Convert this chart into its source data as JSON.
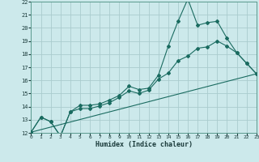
{
  "xlabel": "Humidex (Indice chaleur)",
  "bg_color": "#cce9eb",
  "grid_color": "#aaccce",
  "line_color": "#1a6b60",
  "xlim": [
    0,
    23
  ],
  "ylim": [
    12,
    22
  ],
  "xticks": [
    0,
    1,
    2,
    3,
    4,
    5,
    6,
    7,
    8,
    9,
    10,
    11,
    12,
    13,
    14,
    15,
    16,
    17,
    18,
    19,
    20,
    21,
    22,
    23
  ],
  "yticks": [
    12,
    13,
    14,
    15,
    16,
    17,
    18,
    19,
    20,
    21,
    22
  ],
  "line1_x": [
    0,
    1,
    2,
    3,
    4,
    5,
    6,
    7,
    8,
    9,
    10,
    11,
    12,
    13,
    14,
    15,
    16,
    17,
    18,
    19,
    20,
    21,
    22,
    23
  ],
  "line1_y": [
    12.05,
    13.2,
    12.85,
    11.75,
    13.6,
    14.1,
    14.1,
    14.2,
    14.5,
    14.85,
    15.55,
    15.3,
    15.4,
    16.4,
    18.6,
    20.5,
    22.2,
    20.2,
    20.4,
    20.5,
    19.2,
    18.1,
    17.3,
    16.5
  ],
  "line2_x": [
    0,
    1,
    2,
    3,
    4,
    5,
    6,
    7,
    8,
    9,
    10,
    11,
    12,
    13,
    14,
    15,
    16,
    17,
    18,
    19,
    20,
    21,
    22,
    23
  ],
  "line2_y": [
    12.05,
    13.2,
    12.85,
    11.75,
    13.6,
    13.85,
    13.85,
    14.05,
    14.3,
    14.7,
    15.2,
    15.0,
    15.25,
    16.1,
    16.55,
    17.5,
    17.85,
    18.45,
    18.55,
    19.0,
    18.6,
    18.1,
    17.3,
    16.5
  ],
  "line3_x": [
    0,
    23
  ],
  "line3_y": [
    12.05,
    16.5
  ]
}
